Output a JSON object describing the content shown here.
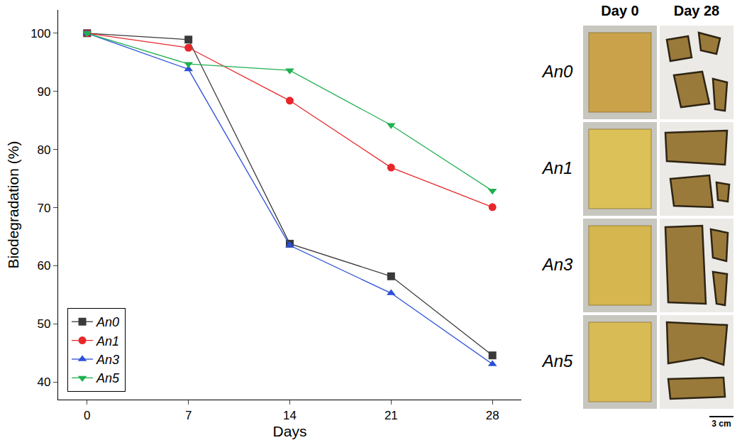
{
  "chart_data": {
    "type": "line",
    "x": [
      0,
      7,
      14,
      21,
      28
    ],
    "xlabel": "Days",
    "ylabel": "Biodegradation (%)",
    "xlim": [
      -2,
      30
    ],
    "xticks": [
      0,
      7,
      14,
      21,
      28
    ],
    "ylim": [
      37,
      104
    ],
    "yticks": [
      40,
      50,
      60,
      70,
      80,
      90,
      100
    ],
    "grid": false,
    "legend": "lower left",
    "series": [
      {
        "name": "An0",
        "color": "#3a3a3a",
        "marker": "square",
        "values": [
          100,
          98.9,
          63.8,
          58.2,
          44.6
        ]
      },
      {
        "name": "An1",
        "color": "#e8262a",
        "marker": "circle",
        "values": [
          100,
          97.5,
          88.4,
          76.9,
          70.1
        ]
      },
      {
        "name": "An3",
        "color": "#2a4fd8",
        "marker": "triangle-up",
        "values": [
          100,
          93.8,
          63.5,
          55.3,
          43.1
        ]
      },
      {
        "name": "An5",
        "color": "#20b050",
        "marker": "triangle-down",
        "values": [
          100,
          94.7,
          93.6,
          84.2,
          72.9
        ]
      }
    ]
  },
  "photos": {
    "columns": [
      "Day 0",
      "Day 28"
    ],
    "rows": [
      "An0",
      "An1",
      "An3",
      "An5"
    ],
    "scale_bar": "3 cm"
  }
}
